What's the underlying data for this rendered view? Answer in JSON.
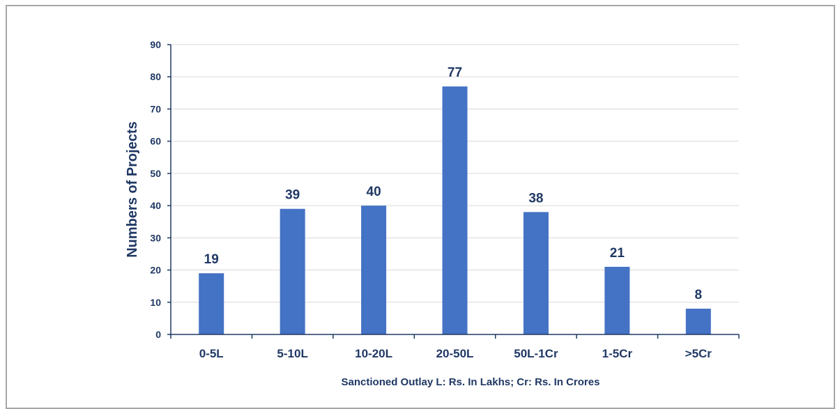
{
  "chart_data": {
    "type": "bar",
    "title": "",
    "xlabel": "Sanctioned Outlay L: Rs. In Lakhs; Cr: Rs. In Crores",
    "ylabel": "Numbers of Projects",
    "ylim": [
      0,
      90
    ],
    "yticks": [
      0,
      10,
      20,
      30,
      40,
      50,
      60,
      70,
      80,
      90
    ],
    "categories": [
      "0-5L",
      "5-10L",
      "10-20L",
      "20-50L",
      "50L-1Cr",
      "1-5Cr",
      ">5Cr"
    ],
    "values": [
      19,
      39,
      40,
      77,
      38,
      21,
      8
    ],
    "data_labels": [
      "19",
      "39",
      "40",
      "77",
      "38",
      "21",
      "8"
    ],
    "grid": true,
    "legend": "none",
    "colors": {
      "bar": "#4472c4",
      "text": "#1f3864",
      "grid": "#d9d9d9",
      "frame": "#a7a7a7"
    }
  }
}
